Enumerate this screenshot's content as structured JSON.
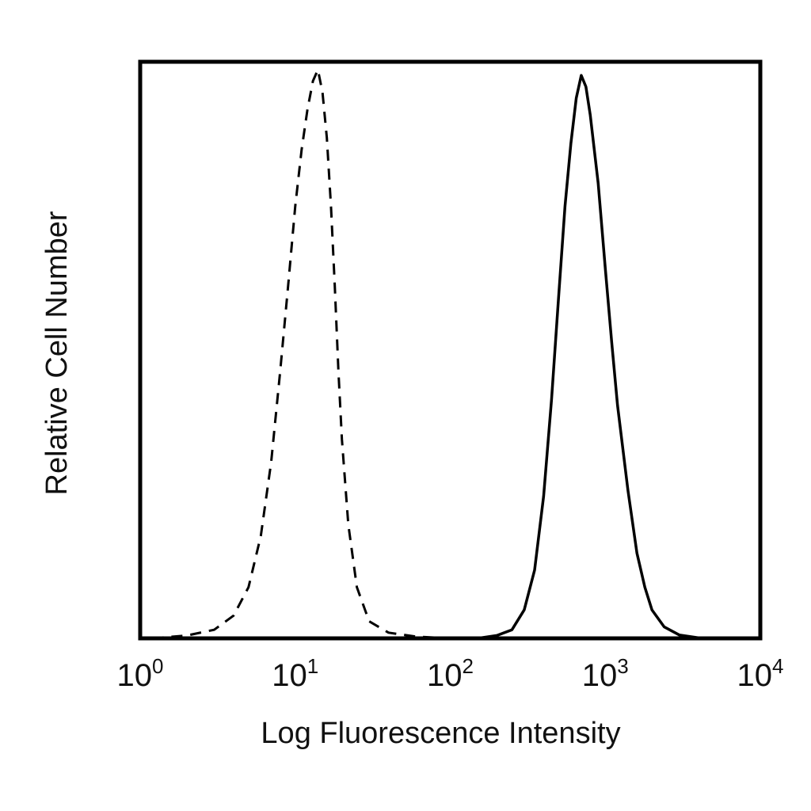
{
  "chart_data": {
    "type": "line",
    "title": "",
    "xlabel": "Log Fluorescence Intensity",
    "ylabel": "Relative Cell Number",
    "x_scale": "log",
    "xlim": [
      1,
      10000
    ],
    "ylim": [
      0,
      1
    ],
    "grid": false,
    "legend": "none",
    "x_ticks": [
      {
        "value": 1,
        "base": "10",
        "exponent": "0"
      },
      {
        "value": 10,
        "base": "10",
        "exponent": "1"
      },
      {
        "value": 100,
        "base": "10",
        "exponent": "2"
      },
      {
        "value": 1000,
        "base": "10",
        "exponent": "3"
      },
      {
        "value": 10000,
        "base": "10",
        "exponent": "4"
      }
    ],
    "series": [
      {
        "style": "dashed",
        "color": "#000000",
        "x": [
          1.2,
          2.0,
          3.0,
          4.0,
          5.0,
          6.0,
          7.0,
          8.0,
          9.0,
          10.0,
          11.0,
          12.0,
          13.0,
          14.0,
          15.0,
          16.0,
          17.0,
          18.0,
          19.0,
          20.0,
          22.0,
          25.0,
          30.0,
          40.0,
          60.0,
          100.0
        ],
        "y": [
          0.0,
          0.005,
          0.015,
          0.04,
          0.09,
          0.18,
          0.31,
          0.47,
          0.62,
          0.76,
          0.86,
          0.93,
          0.98,
          1.0,
          0.96,
          0.88,
          0.76,
          0.62,
          0.47,
          0.35,
          0.2,
          0.09,
          0.03,
          0.01,
          0.003,
          0.0
        ]
      },
      {
        "style": "solid",
        "color": "#000000",
        "x": [
          150,
          200,
          250,
          300,
          350,
          400,
          450,
          500,
          550,
          600,
          650,
          700,
          750,
          800,
          900,
          1000,
          1100,
          1200,
          1400,
          1600,
          1800,
          2000,
          2400,
          3000,
          4000,
          5000
        ],
        "y": [
          0.0,
          0.005,
          0.015,
          0.05,
          0.12,
          0.25,
          0.42,
          0.6,
          0.76,
          0.87,
          0.95,
          0.99,
          0.97,
          0.92,
          0.8,
          0.65,
          0.52,
          0.41,
          0.26,
          0.15,
          0.09,
          0.05,
          0.02,
          0.006,
          0.001,
          0.0
        ]
      }
    ]
  }
}
